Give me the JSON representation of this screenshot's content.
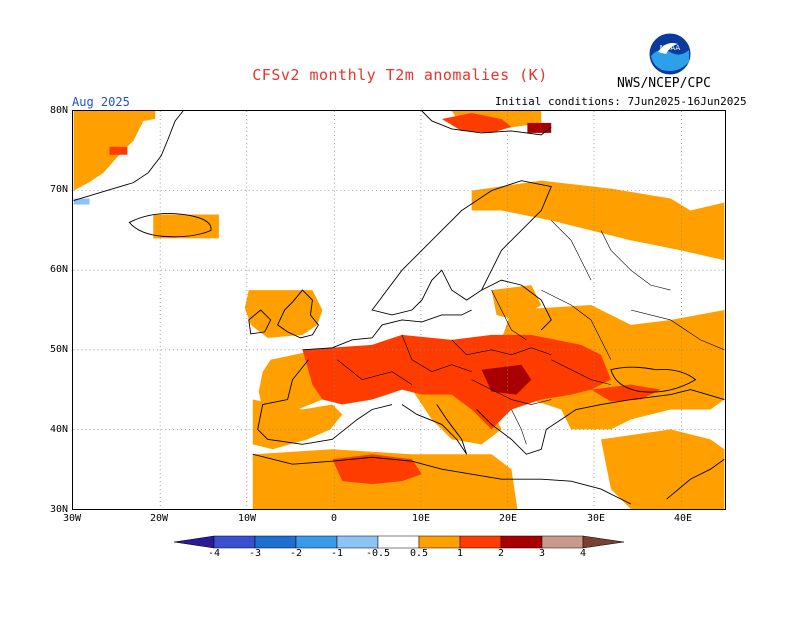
{
  "header": {
    "title": "CFSv2 monthly T2m anomalies (K)",
    "agency": "NWS/NCEP/CPC",
    "logo_text": "NOAA",
    "month": "Aug 2025",
    "initial_conditions": "Initial conditions: 7Jun2025-16Jun2025"
  },
  "axes": {
    "lat_labels": [
      "80N",
      "70N",
      "60N",
      "50N",
      "40N",
      "30N"
    ],
    "lon_labels": [
      "30W",
      "20W",
      "10W",
      "0",
      "10E",
      "20E",
      "30E",
      "40E"
    ],
    "extent": {
      "lon": [
        -30,
        45
      ],
      "lat": [
        30,
        80
      ]
    }
  },
  "legend": {
    "tick_labels": [
      "-4",
      "-3",
      "-2",
      "-1",
      "-0.5",
      "0.5",
      "1",
      "2",
      "3",
      "4"
    ],
    "colors": [
      "#2a1a9a",
      "#3a4fd0",
      "#1e6fd2",
      "#3a9be8",
      "#8cc4f5",
      "#ffffff",
      "#ffa000",
      "#ff3c00",
      "#a80000",
      "#c89a8c",
      "#7a4030"
    ]
  },
  "anomaly_colors": {
    "c05": "#ffa000",
    "c1": "#ff3c00",
    "c2": "#a80000",
    "cneg": "#8cc4f5"
  }
}
